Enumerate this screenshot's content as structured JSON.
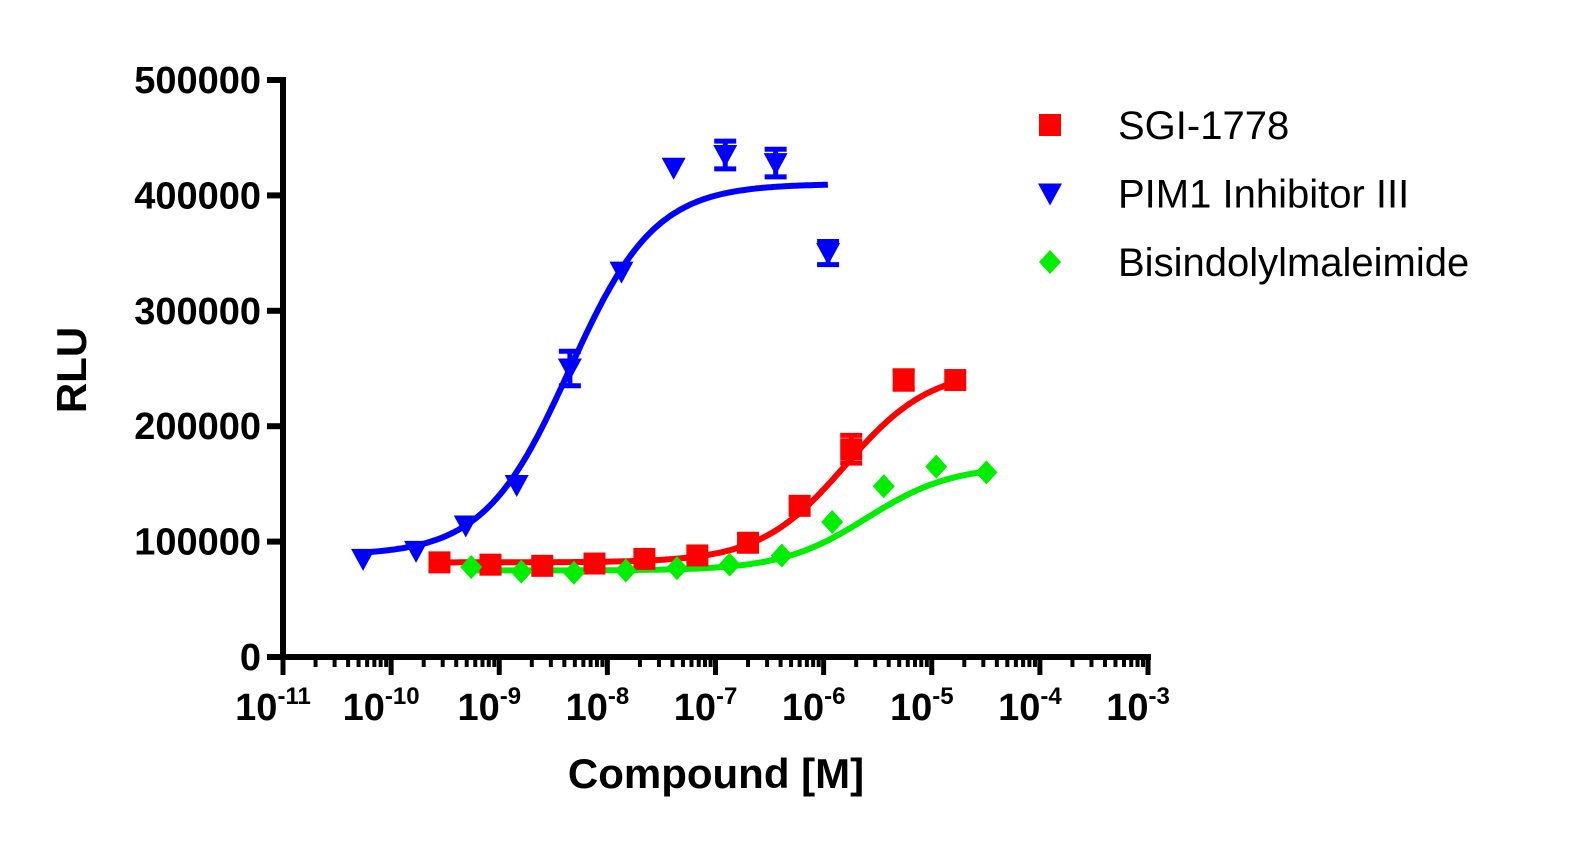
{
  "chart_data": {
    "type": "scatter",
    "title": "",
    "xlabel": "Compound [M]",
    "ylabel": "RLU",
    "xscale": "log",
    "xlim": [
      1e-11,
      0.001
    ],
    "ylim": [
      0,
      500000
    ],
    "grid": false,
    "legend_placement": "right",
    "x_ticks": [
      {
        "base": "10",
        "exp": "-11",
        "value": 1e-11
      },
      {
        "base": "10",
        "exp": "-10",
        "value": 1e-10
      },
      {
        "base": "10",
        "exp": "-9",
        "value": 1e-09
      },
      {
        "base": "10",
        "exp": "-8",
        "value": 1e-08
      },
      {
        "base": "10",
        "exp": "-7",
        "value": 1e-07
      },
      {
        "base": "10",
        "exp": "-6",
        "value": 1e-06
      },
      {
        "base": "10",
        "exp": "-5",
        "value": 1e-05
      },
      {
        "base": "10",
        "exp": "-4",
        "value": 0.0001
      },
      {
        "base": "10",
        "exp": "-3",
        "value": 0.001
      }
    ],
    "y_ticks": [
      "0",
      "100000",
      "200000",
      "300000",
      "400000",
      "500000"
    ],
    "series": [
      {
        "name": "SGI-1778",
        "color": "#ff0000",
        "marker": "square",
        "fit": "sigmoidal dose-response curve",
        "x": [
          2.8e-10,
          8.3e-10,
          2.5e-09,
          7.6e-09,
          2.2e-08,
          6.8e-08,
          2e-07,
          6e-07,
          1.8e-06,
          5.5e-06,
          1.65e-05
        ],
        "y": [
          82000,
          80000,
          79000,
          81000,
          85000,
          88000,
          99000,
          131000,
          180000,
          240000,
          240000
        ],
        "err": [
          0,
          0,
          0,
          0,
          0,
          0,
          0,
          0,
          12000,
          8000,
          0
        ]
      },
      {
        "name": "PIM1 Inhibitor III",
        "color": "#0000ff",
        "marker": "triangle-down",
        "fit": "sigmoidal dose-response curve",
        "x": [
          5.5e-11,
          1.7e-10,
          4.9e-10,
          1.45e-09,
          4.5e-09,
          1.35e-08,
          4.1e-08,
          1.23e-07,
          3.6e-07,
          1.1e-06
        ],
        "y": [
          85000,
          92000,
          114000,
          149000,
          250000,
          334000,
          424000,
          435000,
          428000,
          350000
        ],
        "err": [
          0,
          0,
          0,
          0,
          15000,
          0,
          0,
          12000,
          12000,
          10000
        ]
      },
      {
        "name": "Bisindolylmaleimide",
        "color": "#00ee00",
        "marker": "diamond",
        "fit": "sigmoidal dose-response curve",
        "x": [
          5.5e-10,
          1.6e-09,
          4.9e-09,
          1.48e-08,
          4.4e-08,
          1.35e-07,
          4.1e-07,
          1.2e-06,
          3.6e-06,
          1.1e-05,
          3.2e-05
        ],
        "y": [
          78000,
          74000,
          73000,
          75000,
          77000,
          80000,
          88000,
          117000,
          148000,
          165000,
          160000
        ],
        "err": [
          0,
          0,
          0,
          0,
          0,
          0,
          0,
          0,
          0,
          0,
          0
        ]
      }
    ]
  }
}
